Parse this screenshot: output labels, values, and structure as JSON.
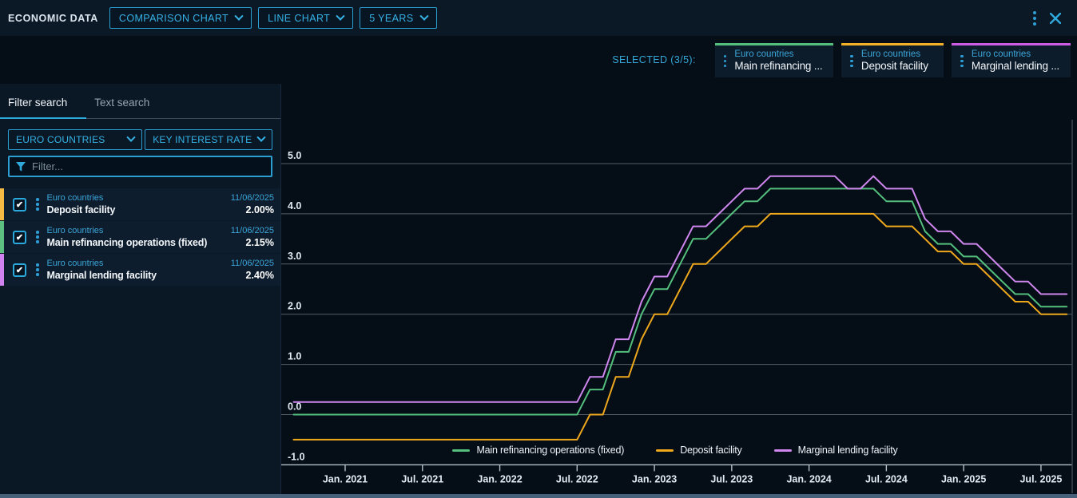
{
  "header": {
    "title": "ECONOMIC DATA",
    "dropdowns": [
      {
        "label": "COMPARISON CHART"
      },
      {
        "label": "LINE CHART"
      },
      {
        "label": "5 YEARS"
      }
    ],
    "icons": [
      "kebab-menu-icon",
      "close-icon"
    ]
  },
  "selected_bar": {
    "label": "SELECTED (3/5):",
    "chips": [
      {
        "category": "Euro countries",
        "name": "Main refinancing ...",
        "color": "#54bf7c"
      },
      {
        "category": "Euro countries",
        "name": "Deposit facility",
        "color": "#f2b028"
      },
      {
        "category": "Euro countries",
        "name": "Marginal lending ...",
        "color": "#cd5ce4"
      }
    ]
  },
  "sidebar": {
    "tabs": [
      {
        "label": "Filter search",
        "active": true
      },
      {
        "label": "Text search",
        "active": false
      }
    ],
    "dropdowns": [
      {
        "label": "EURO COUNTRIES"
      },
      {
        "label": "KEY INTEREST RATE"
      }
    ],
    "filter_placeholder": "Filter...",
    "items": [
      {
        "category": "Euro countries",
        "name": "Deposit facility",
        "date": "11/06/2025",
        "value": "2.00%",
        "color": "#f5ba43",
        "checked": true
      },
      {
        "category": "Euro countries",
        "name": "Main refinancing operations (fixed)",
        "date": "11/06/2025",
        "value": "2.15%",
        "color": "#5cc180",
        "checked": true
      },
      {
        "category": "Euro countries",
        "name": "Marginal lending facility",
        "date": "11/06/2025",
        "value": "2.40%",
        "color": "#d083ef",
        "checked": true
      }
    ]
  },
  "chart_data": {
    "type": "line",
    "x_start_month": "2020-09",
    "x_step_months": 1,
    "x_ticks": [
      "Jan. 2021",
      "Jul. 2021",
      "Jan. 2022",
      "Jul. 2022",
      "Jan. 2023",
      "Jul. 2023",
      "Jan. 2024",
      "Jul. 2024",
      "Jan. 2025",
      "Jul. 2025"
    ],
    "y_ticks": [
      "5.0",
      "4.0",
      "3.0",
      "2.0",
      "1.0",
      "0.0",
      "-1.0"
    ],
    "ylim": [
      -1.0,
      5.5
    ],
    "grid": true,
    "legend_position": "bottom-center",
    "ylabel": "",
    "xlabel": "",
    "series": [
      {
        "name": "Main refinancing operations (fixed)",
        "color": "#54bf7c",
        "values": [
          0,
          0,
          0,
          0,
          0,
          0,
          0,
          0,
          0,
          0,
          0,
          0,
          0,
          0,
          0,
          0,
          0,
          0,
          0,
          0,
          0,
          0,
          0,
          0.5,
          0.5,
          1.25,
          1.25,
          2.0,
          2.5,
          2.5,
          3.0,
          3.5,
          3.5,
          3.75,
          4.0,
          4.25,
          4.25,
          4.5,
          4.5,
          4.5,
          4.5,
          4.5,
          4.5,
          4.5,
          4.5,
          4.5,
          4.25,
          4.25,
          4.25,
          3.65,
          3.4,
          3.4,
          3.15,
          3.15,
          2.9,
          2.65,
          2.4,
          2.4,
          2.15,
          2.15,
          2.15
        ]
      },
      {
        "name": "Deposit facility",
        "color": "#efa81c",
        "values": [
          -0.5,
          -0.5,
          -0.5,
          -0.5,
          -0.5,
          -0.5,
          -0.5,
          -0.5,
          -0.5,
          -0.5,
          -0.5,
          -0.5,
          -0.5,
          -0.5,
          -0.5,
          -0.5,
          -0.5,
          -0.5,
          -0.5,
          -0.5,
          -0.5,
          -0.5,
          -0.5,
          0.0,
          0.0,
          0.75,
          0.75,
          1.5,
          2.0,
          2.0,
          2.5,
          3.0,
          3.0,
          3.25,
          3.5,
          3.75,
          3.75,
          4.0,
          4.0,
          4.0,
          4.0,
          4.0,
          4.0,
          4.0,
          4.0,
          4.0,
          3.75,
          3.75,
          3.75,
          3.5,
          3.25,
          3.25,
          3.0,
          3.0,
          2.75,
          2.5,
          2.25,
          2.25,
          2.0,
          2.0,
          2.0
        ]
      },
      {
        "name": "Marginal lending facility",
        "color": "#cf86ee",
        "values": [
          0.25,
          0.25,
          0.25,
          0.25,
          0.25,
          0.25,
          0.25,
          0.25,
          0.25,
          0.25,
          0.25,
          0.25,
          0.25,
          0.25,
          0.25,
          0.25,
          0.25,
          0.25,
          0.25,
          0.25,
          0.25,
          0.25,
          0.25,
          0.75,
          0.75,
          1.5,
          1.5,
          2.25,
          2.75,
          2.75,
          3.25,
          3.75,
          3.75,
          4.0,
          4.25,
          4.5,
          4.5,
          4.75,
          4.75,
          4.75,
          4.75,
          4.75,
          4.75,
          4.5,
          4.5,
          4.75,
          4.5,
          4.5,
          4.5,
          3.9,
          3.65,
          3.65,
          3.4,
          3.4,
          3.15,
          2.9,
          2.65,
          2.65,
          2.4,
          2.4,
          2.4
        ]
      }
    ]
  },
  "colors": {
    "accent_cyan": "#2fa9dc",
    "grid": "#535e68",
    "axis": "#b3bec7",
    "header_bg": "#0b1926",
    "sidebar_bg": "#0a1826",
    "chart_bg": "#050e17"
  }
}
